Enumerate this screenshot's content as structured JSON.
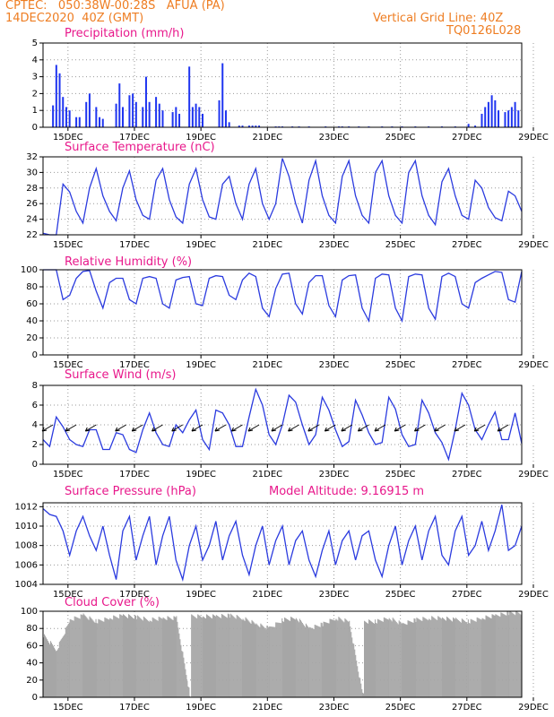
{
  "header": {
    "line1_left": "CPTEC:   050:38W-00:28S   AFUA (PA)",
    "line2_left": "14DEC2020  40Z (GMT)",
    "line1_right": "Vertical Grid Line: 40Z",
    "line2_right": "TQ0126L028"
  },
  "colors": {
    "header": "#ee7d22",
    "title": "#e8188b",
    "line": "#2b3bdf",
    "bar": "#1f35f0",
    "cloud": "#a6a6a6"
  },
  "chart_data": [
    {
      "type": "bar",
      "title": "Precipitation (mm/h)",
      "ylim": [
        0,
        5
      ],
      "yticks": [
        0,
        1,
        2,
        3,
        4,
        5
      ],
      "xticks": [
        "15DEC",
        "17DEC",
        "19DEC",
        "21DEC",
        "23DEC",
        "25DEC",
        "27DEC",
        "29DEC"
      ],
      "x": [
        0.3,
        0.4,
        0.5,
        0.6,
        0.7,
        0.8,
        1.0,
        1.1,
        1.3,
        1.4,
        1.6,
        1.7,
        1.8,
        2.2,
        2.3,
        2.4,
        2.6,
        2.7,
        2.8,
        3.0,
        3.1,
        3.2,
        3.4,
        3.5,
        3.6,
        3.9,
        4.0,
        4.1,
        4.4,
        4.5,
        4.6,
        4.7,
        4.8,
        5.3,
        5.4,
        5.5,
        5.6,
        5.9,
        6.0,
        6.2,
        6.3,
        6.4,
        6.5,
        7.0,
        7.1,
        7.2,
        7.5,
        7.7,
        8.0,
        8.5,
        8.9,
        9.0,
        9.2,
        9.5,
        9.8,
        10.2,
        10.5,
        10.8,
        11.2,
        11.6,
        12.0,
        12.4,
        12.8,
        13.0,
        13.2,
        13.3,
        13.4,
        13.5,
        13.6,
        13.7,
        13.9,
        14.0,
        14.1,
        14.2,
        14.3
      ],
      "values": [
        1.3,
        3.7,
        3.2,
        1.8,
        1.2,
        1.0,
        0.6,
        0.6,
        1.5,
        2.0,
        1.2,
        0.6,
        0.5,
        1.4,
        2.6,
        1.2,
        1.9,
        2.0,
        1.5,
        1.2,
        3.0,
        1.5,
        1.8,
        1.4,
        1.0,
        0.9,
        1.2,
        0.8,
        3.6,
        1.2,
        1.4,
        1.2,
        0.8,
        1.6,
        3.8,
        1.0,
        0.3,
        0.1,
        0.1,
        0.1,
        0.1,
        0.1,
        0.1,
        0.05,
        0.05,
        0.05,
        0.05,
        0.05,
        0.05,
        0.05,
        0.05,
        0.05,
        0.05,
        0.05,
        0.05,
        0.05,
        0.05,
        0.05,
        0.05,
        0.05,
        0.05,
        0.05,
        0.2,
        0.1,
        0.8,
        1.2,
        1.5,
        1.9,
        1.6,
        1.0,
        0.9,
        1.0,
        1.2,
        1.5,
        1.0
      ]
    },
    {
      "type": "line",
      "title": "Surface Temperature (nC)",
      "ylim": [
        22,
        32
      ],
      "yticks": [
        22,
        24,
        26,
        28,
        30,
        32
      ],
      "xticks": [
        "15DEC",
        "17DEC",
        "19DEC",
        "21DEC",
        "23DEC",
        "25DEC",
        "27DEC",
        "29DEC"
      ],
      "x": [
        0,
        0.2,
        0.4,
        0.6,
        0.8,
        1.0,
        1.2,
        1.4,
        1.6,
        1.8,
        2.0,
        2.2,
        2.4,
        2.6,
        2.8,
        3.0,
        3.2,
        3.4,
        3.6,
        3.8,
        4.0,
        4.2,
        4.4,
        4.6,
        4.8,
        5.0,
        5.2,
        5.4,
        5.6,
        5.8,
        6.0,
        6.2,
        6.4,
        6.6,
        6.8,
        7.0,
        7.2,
        7.4,
        7.6,
        7.8,
        8.0,
        8.2,
        8.4,
        8.6,
        8.8,
        9.0,
        9.2,
        9.4,
        9.6,
        9.8,
        10.0,
        10.2,
        10.4,
        10.6,
        10.8,
        11.0,
        11.2,
        11.4,
        11.6,
        11.8,
        12.0,
        12.2,
        12.4,
        12.6,
        12.8,
        13.0,
        13.2,
        13.4,
        13.6,
        13.8,
        14.0,
        14.2,
        14.4
      ],
      "values": [
        22.2,
        22,
        22,
        28.5,
        27.5,
        25,
        23.5,
        28,
        30.5,
        27,
        25,
        23.8,
        28,
        30.2,
        26.5,
        24.5,
        24,
        29,
        30.5,
        26.5,
        24.3,
        23.5,
        28.5,
        30.5,
        26.5,
        24.3,
        24,
        28.5,
        29.5,
        26,
        24,
        28.5,
        30.5,
        26,
        24,
        26,
        31.8,
        29.5,
        26,
        23.5,
        29,
        31.5,
        27,
        24.5,
        23.5,
        29.5,
        31.5,
        27,
        24.5,
        23.5,
        30,
        31.5,
        27,
        24.5,
        23.5,
        30,
        31.5,
        27,
        24.5,
        23.3,
        28.8,
        30.5,
        27,
        24.5,
        24,
        29,
        28,
        25.5,
        24.2,
        23.8,
        27.6,
        27,
        25
      ]
    },
    {
      "type": "line",
      "title": "Relative Humidity (%)",
      "ylim": [
        0,
        100
      ],
      "yticks": [
        0,
        20,
        40,
        60,
        80,
        100
      ],
      "xticks": [
        "15DEC",
        "17DEC",
        "19DEC",
        "21DEC",
        "23DEC",
        "25DEC",
        "27DEC",
        "29DEC"
      ],
      "x": [
        0,
        0.2,
        0.4,
        0.6,
        0.8,
        1.0,
        1.2,
        1.4,
        1.6,
        1.8,
        2.0,
        2.2,
        2.4,
        2.6,
        2.8,
        3.0,
        3.2,
        3.4,
        3.6,
        3.8,
        4.0,
        4.2,
        4.4,
        4.6,
        4.8,
        5.0,
        5.2,
        5.4,
        5.6,
        5.8,
        6.0,
        6.2,
        6.4,
        6.6,
        6.8,
        7.0,
        7.2,
        7.4,
        7.6,
        7.8,
        8.0,
        8.2,
        8.4,
        8.6,
        8.8,
        9.0,
        9.2,
        9.4,
        9.6,
        9.8,
        10.0,
        10.2,
        10.4,
        10.6,
        10.8,
        11.0,
        11.2,
        11.4,
        11.6,
        11.8,
        12.0,
        12.2,
        12.4,
        12.6,
        12.8,
        13.0,
        13.2,
        13.4,
        13.6,
        13.8,
        14.0,
        14.2,
        14.4
      ],
      "values": [
        100,
        100,
        100,
        65,
        70,
        90,
        98,
        99,
        75,
        55,
        85,
        90,
        90,
        65,
        60,
        90,
        92,
        90,
        60,
        55,
        88,
        91,
        92,
        60,
        58,
        90,
        93,
        92,
        70,
        65,
        88,
        96,
        92,
        55,
        45,
        78,
        95,
        96,
        60,
        48,
        85,
        93,
        93,
        58,
        45,
        88,
        93,
        94,
        55,
        40,
        90,
        95,
        94,
        55,
        40,
        92,
        95,
        94,
        55,
        42,
        92,
        96,
        92,
        60,
        55,
        85,
        90,
        94,
        98,
        97,
        65,
        62,
        98
      ]
    },
    {
      "type": "line",
      "title": "Surface Wind (m/s)",
      "ylim": [
        0,
        8
      ],
      "yticks": [
        0,
        2,
        4,
        6,
        8
      ],
      "xticks": [
        "15DEC",
        "17DEC",
        "19DEC",
        "21DEC",
        "23DEC",
        "25DEC",
        "27DEC",
        "29DEC"
      ],
      "x": [
        0,
        0.2,
        0.4,
        0.6,
        0.8,
        1.0,
        1.2,
        1.4,
        1.6,
        1.8,
        2.0,
        2.2,
        2.4,
        2.6,
        2.8,
        3.0,
        3.2,
        3.4,
        3.6,
        3.8,
        4.0,
        4.2,
        4.4,
        4.6,
        4.8,
        5.0,
        5.2,
        5.4,
        5.6,
        5.8,
        6.0,
        6.2,
        6.4,
        6.6,
        6.8,
        7.0,
        7.2,
        7.4,
        7.6,
        7.8,
        8.0,
        8.2,
        8.4,
        8.6,
        8.8,
        9.0,
        9.2,
        9.4,
        9.6,
        9.8,
        10.0,
        10.2,
        10.4,
        10.6,
        10.8,
        11.0,
        11.2,
        11.4,
        11.6,
        11.8,
        12.0,
        12.2,
        12.4,
        12.6,
        12.8,
        13.0,
        13.2,
        13.4,
        13.6,
        13.8,
        14.0,
        14.2,
        14.4
      ],
      "values": [
        2.5,
        1.8,
        4.8,
        3.8,
        2.5,
        2,
        1.8,
        3.5,
        3.5,
        1.5,
        1.5,
        3.2,
        3,
        1.5,
        1.2,
        3.5,
        5.2,
        3.2,
        2.0,
        1.8,
        4,
        3.2,
        4.5,
        5.5,
        2.5,
        1.5,
        5.5,
        5.2,
        4.0,
        1.8,
        1.8,
        4.8,
        7.6,
        6,
        3,
        2,
        4,
        7,
        6.3,
        4,
        2,
        3,
        6.8,
        5.5,
        3.5,
        1.8,
        2.3,
        6.5,
        5,
        3.2,
        2,
        2.2,
        6.8,
        5.6,
        3,
        1.8,
        2,
        6.5,
        5.2,
        3.2,
        2.2,
        0.5,
        3.5,
        7.2,
        6,
        3.5,
        2.5,
        4,
        5.3,
        2.5,
        2.5,
        5.2,
        2.1
      ],
      "arrows": [
        [
          0.3,
          112
        ],
        [
          1.0,
          112
        ],
        [
          1.6,
          112
        ],
        [
          2.5,
          112
        ],
        [
          3.0,
          112
        ],
        [
          3.6,
          112
        ],
        [
          4.2,
          112
        ],
        [
          4.8,
          112
        ],
        [
          5.5,
          112
        ],
        [
          6.0,
          112
        ],
        [
          6.5,
          112
        ],
        [
          7.2,
          112
        ],
        [
          7.7,
          112
        ],
        [
          8.3,
          112
        ],
        [
          8.8,
          112
        ],
        [
          9.3,
          112
        ],
        [
          9.8,
          112
        ],
        [
          10.3,
          112
        ],
        [
          10.9,
          112
        ],
        [
          11.5,
          112
        ],
        [
          12.1,
          112
        ],
        [
          12.7,
          112
        ],
        [
          13.3,
          112
        ],
        [
          14.0,
          112
        ]
      ]
    },
    {
      "type": "line",
      "title": "Surface Pressure (hPa)",
      "annotation": "Model Altitude: 9.16915 m",
      "ylim": [
        1004,
        1012.4
      ],
      "yticks": [
        1004,
        1006,
        1008,
        1010,
        1012
      ],
      "xticks": [
        "15DEC",
        "17DEC",
        "19DEC",
        "21DEC",
        "23DEC",
        "25DEC",
        "27DEC",
        "29DEC"
      ],
      "x": [
        0,
        0.2,
        0.4,
        0.6,
        0.8,
        1.0,
        1.2,
        1.4,
        1.6,
        1.8,
        2.0,
        2.2,
        2.4,
        2.6,
        2.8,
        3.0,
        3.2,
        3.4,
        3.6,
        3.8,
        4.0,
        4.2,
        4.4,
        4.6,
        4.8,
        5.0,
        5.2,
        5.4,
        5.6,
        5.8,
        6.0,
        6.2,
        6.4,
        6.6,
        6.8,
        7.0,
        7.2,
        7.4,
        7.6,
        7.8,
        8.0,
        8.2,
        8.4,
        8.6,
        8.8,
        9.0,
        9.2,
        9.4,
        9.6,
        9.8,
        10.0,
        10.2,
        10.4,
        10.6,
        10.8,
        11.0,
        11.2,
        11.4,
        11.6,
        11.8,
        12.0,
        12.2,
        12.4,
        12.6,
        12.8,
        13.0,
        13.2,
        13.4,
        13.6,
        13.8,
        14.0,
        14.2,
        14.4
      ],
      "values": [
        1011.8,
        1011.2,
        1011.0,
        1009.5,
        1007.0,
        1009.5,
        1011.0,
        1009.0,
        1007.5,
        1010.0,
        1007.0,
        1004.5,
        1009.5,
        1011.0,
        1006.5,
        1009.0,
        1011.0,
        1006.0,
        1009.0,
        1011.0,
        1006.5,
        1004.5,
        1008.0,
        1010.0,
        1006.5,
        1008.0,
        1010.5,
        1006.5,
        1009.0,
        1010.5,
        1007.0,
        1005.0,
        1008.0,
        1010.0,
        1006.0,
        1008.5,
        1010.0,
        1006.0,
        1008.5,
        1009.5,
        1006.5,
        1004.8,
        1007.5,
        1009.5,
        1006.0,
        1008.5,
        1009.5,
        1006.5,
        1009.0,
        1009.5,
        1006.5,
        1004.8,
        1008.0,
        1010.0,
        1006.0,
        1008.5,
        1010.0,
        1006.5,
        1009.5,
        1011.0,
        1007.0,
        1006.0,
        1009.5,
        1011.0,
        1007.0,
        1008.0,
        1010.5,
        1007.5,
        1009.5,
        1012.2,
        1007.5,
        1008.0,
        1010.0
      ]
    },
    {
      "type": "area",
      "title": "Cloud Cover (%)",
      "ylim": [
        0,
        100
      ],
      "yticks": [
        0,
        20,
        40,
        60,
        80,
        100
      ],
      "xticks": [
        "15DEC",
        "17DEC",
        "19DEC",
        "21DEC",
        "23DEC",
        "25DEC",
        "27DEC",
        "29DEC"
      ],
      "x": [
        0,
        0.4,
        0.8,
        1.2,
        1.6,
        2.0,
        2.4,
        2.8,
        3.2,
        3.6,
        4.0,
        4.4,
        4.8,
        5.2,
        5.6,
        6.0,
        6.4,
        6.8,
        7.2,
        7.6,
        8.0,
        8.4,
        8.8,
        9.2,
        9.6,
        10.0,
        10.4,
        10.8,
        11.2,
        11.6,
        12.0,
        12.4,
        12.8,
        13.2,
        13.6,
        14.0,
        14.4
      ],
      "values": [
        72,
        55,
        90,
        95,
        88,
        92,
        95,
        93,
        90,
        92,
        92,
        3,
        94,
        94,
        95,
        92,
        85,
        80,
        90,
        92,
        80,
        85,
        92,
        88,
        3,
        88,
        92,
        85,
        90,
        92,
        92,
        90,
        88,
        92,
        95,
        98,
        98
      ]
    }
  ]
}
